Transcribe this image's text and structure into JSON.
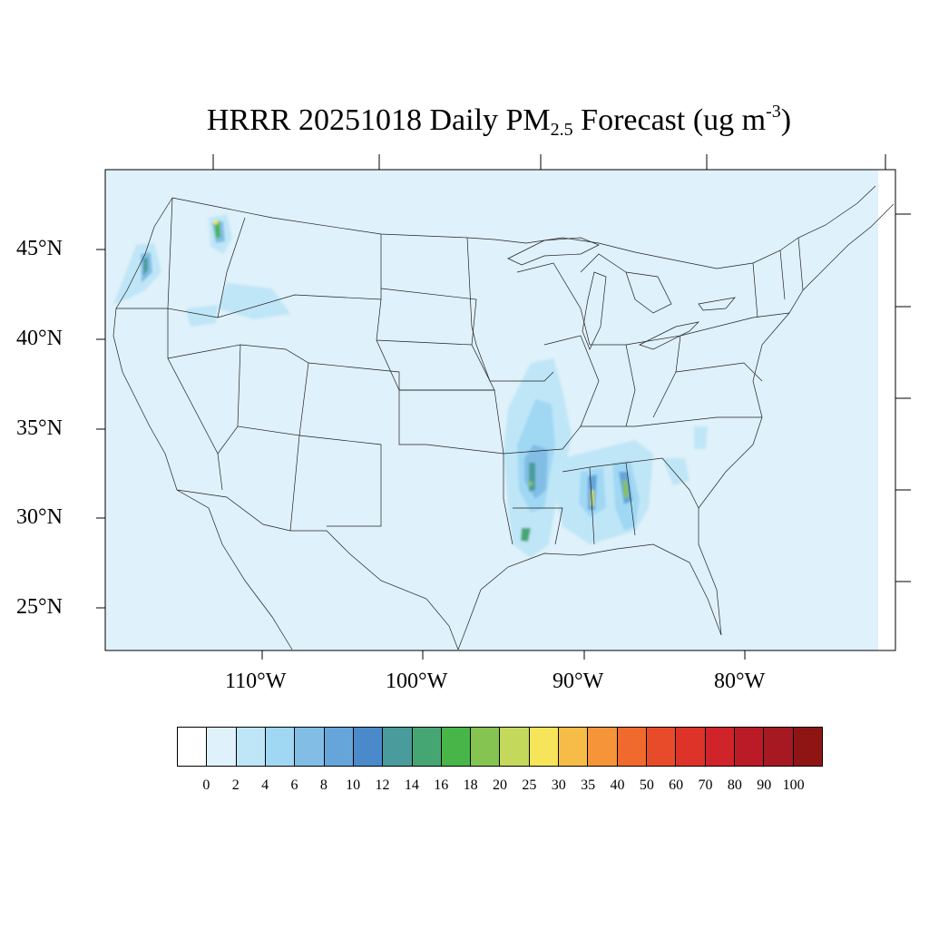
{
  "title": {
    "prefix": "HRRR 20251018 Daily PM",
    "sub": "2.5",
    "middle": " Forecast (ug m",
    "sup": "-3",
    "suffix": ")"
  },
  "lat_labels": [
    "45°N",
    "40°N",
    "35°N",
    "30°N",
    "25°N"
  ],
  "lon_labels": [
    "110°W",
    "100°W",
    "90°W",
    "80°W"
  ],
  "colors": {
    "background": "#ffffff",
    "map_fill": "#dff1fa",
    "boundary_line": "#222222",
    "colorbar": [
      "#ffffff",
      "#dff1fa",
      "#bfe6f7",
      "#a0d8f4",
      "#82bde6",
      "#65a5da",
      "#4a8acb",
      "#4a9b9b",
      "#46a673",
      "#47b548",
      "#85c450",
      "#c4d85b",
      "#f6e55a",
      "#f7bc47",
      "#f59438",
      "#f06a2d",
      "#e84b2a",
      "#de3328",
      "#d1232a",
      "#bb1b27",
      "#a61922",
      "#8f1515"
    ]
  },
  "colorbar_labels": [
    "0",
    "2",
    "4",
    "6",
    "8",
    "10",
    "12",
    "14",
    "16",
    "18",
    "20",
    "25",
    "30",
    "35",
    "40",
    "50",
    "60",
    "70",
    "80",
    "90",
    "100"
  ],
  "pm25_hotspots": [
    {
      "region": "western Oregon",
      "peak": 16
    },
    {
      "region": "central Idaho",
      "peak": 25
    },
    {
      "region": "southern Idaho",
      "peak": 4
    },
    {
      "region": "Arkansas / Louisiana",
      "peak": 16
    },
    {
      "region": "Mississippi",
      "peak": 20
    },
    {
      "region": "Alabama",
      "peak": 20
    },
    {
      "region": "Georgia",
      "peak": 6
    }
  ]
}
